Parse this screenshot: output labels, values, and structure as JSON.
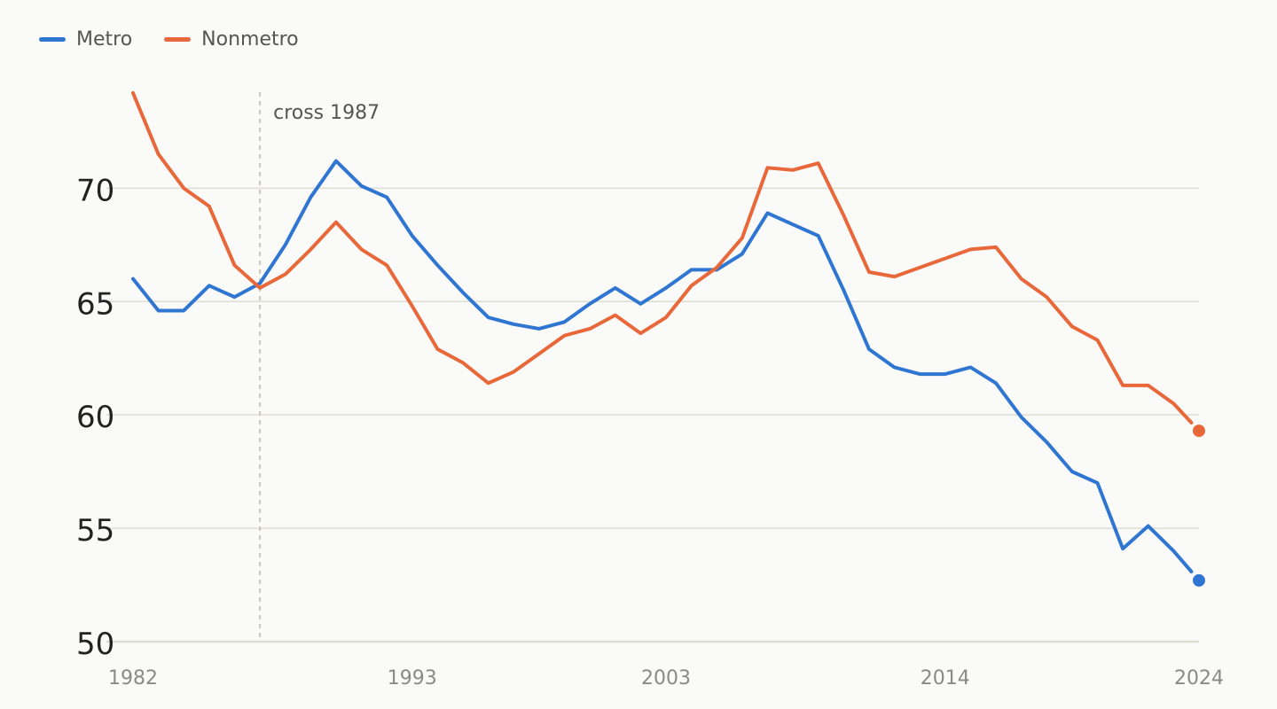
{
  "chart_data": {
    "type": "line",
    "title": "",
    "xlabel": "",
    "ylabel": "",
    "xlim": [
      1982,
      2024
    ],
    "ylim": [
      50,
      74
    ],
    "y_ticks": [
      50,
      55,
      60,
      65,
      70
    ],
    "x_ticks": [
      1982,
      1993,
      2003,
      2014,
      2024
    ],
    "grid": "horizontal",
    "legend_position": "top-left",
    "colors": {
      "Metro": "#2f76d2",
      "Nonmetro": "#e8683a",
      "grid": "#deddd4",
      "annotation": "#c9c6bb"
    },
    "annotation": {
      "x": 1987,
      "label": "cross 1987"
    },
    "x": [
      1982,
      1983,
      1984,
      1985,
      1986,
      1987,
      1988,
      1989,
      1990,
      1991,
      1992,
      1993,
      1994,
      1995,
      1996,
      1997,
      1998,
      1999,
      2000,
      2001,
      2002,
      2003,
      2004,
      2005,
      2006,
      2007,
      2008,
      2009,
      2010,
      2011,
      2012,
      2013,
      2014,
      2015,
      2016,
      2017,
      2018,
      2019,
      2020,
      2021,
      2022,
      2023,
      2024
    ],
    "series": [
      {
        "name": "Metro",
        "values": [
          66.0,
          64.6,
          64.6,
          65.7,
          65.2,
          65.8,
          67.5,
          69.6,
          71.2,
          70.1,
          69.6,
          67.9,
          66.6,
          65.4,
          64.3,
          64.0,
          63.8,
          64.1,
          64.9,
          65.6,
          64.9,
          65.6,
          66.4,
          66.4,
          67.1,
          68.9,
          68.4,
          67.9,
          65.5,
          62.9,
          62.1,
          61.8,
          61.8,
          62.1,
          61.4,
          59.9,
          58.8,
          57.5,
          57.0,
          54.1,
          55.1,
          54.0,
          52.7
        ]
      },
      {
        "name": "Nonmetro",
        "values": [
          74.2,
          71.5,
          70.0,
          69.2,
          66.6,
          65.6,
          66.2,
          67.3,
          68.5,
          67.3,
          66.6,
          64.8,
          62.9,
          62.3,
          61.4,
          61.9,
          62.7,
          63.5,
          63.8,
          64.4,
          63.6,
          64.3,
          65.7,
          66.5,
          67.8,
          70.9,
          70.8,
          71.1,
          68.8,
          66.3,
          66.1,
          66.5,
          66.9,
          67.3,
          67.4,
          66.0,
          65.2,
          63.9,
          63.3,
          61.3,
          61.3,
          60.5,
          59.3
        ]
      }
    ]
  }
}
